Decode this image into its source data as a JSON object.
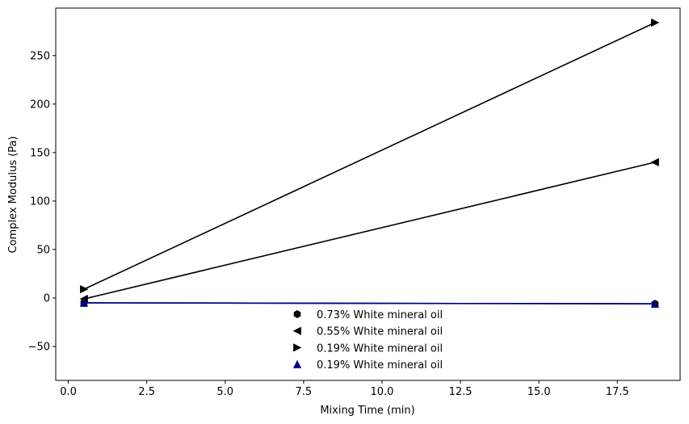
{
  "chart_data": {
    "type": "line",
    "title": "",
    "xlabel": "Mixing Time (min)",
    "ylabel": "Complex Modulus (Pa)",
    "xlim": [
      -0.4,
      19.5
    ],
    "ylim": [
      -85,
      299
    ],
    "x_ticks": [
      0.0,
      2.5,
      5.0,
      7.5,
      10.0,
      12.5,
      15.0,
      17.5
    ],
    "x_tick_labels": [
      "0.0",
      "2.5",
      "5.0",
      "7.5",
      "10.0",
      "12.5",
      "15.0",
      "17.5"
    ],
    "y_ticks": [
      -50,
      0,
      50,
      100,
      150,
      200,
      250
    ],
    "y_tick_labels": [
      "−50",
      "0",
      "50",
      "100",
      "150",
      "200",
      "250"
    ],
    "grid": false,
    "legend_position": "bottom-center",
    "series": [
      {
        "name": "0.73% White mineral oil",
        "marker": "hexagon",
        "color": "#000000",
        "x": [
          0.5,
          18.7
        ],
        "y": [
          -5,
          -6
        ]
      },
      {
        "name": "0.55% White mineral oil",
        "marker": "triangle-left",
        "color": "#000000",
        "x": [
          0.5,
          18.7
        ],
        "y": [
          -1,
          140
        ]
      },
      {
        "name": "0.19% White mineral oil",
        "marker": "triangle-right",
        "color": "#000000",
        "x": [
          0.5,
          18.7
        ],
        "y": [
          9,
          284
        ]
      },
      {
        "name": "0.19% White mineral oil",
        "marker": "triangle-up",
        "color": "#00008b",
        "x": [
          0.5,
          18.7
        ],
        "y": [
          -5,
          -6
        ]
      }
    ]
  }
}
